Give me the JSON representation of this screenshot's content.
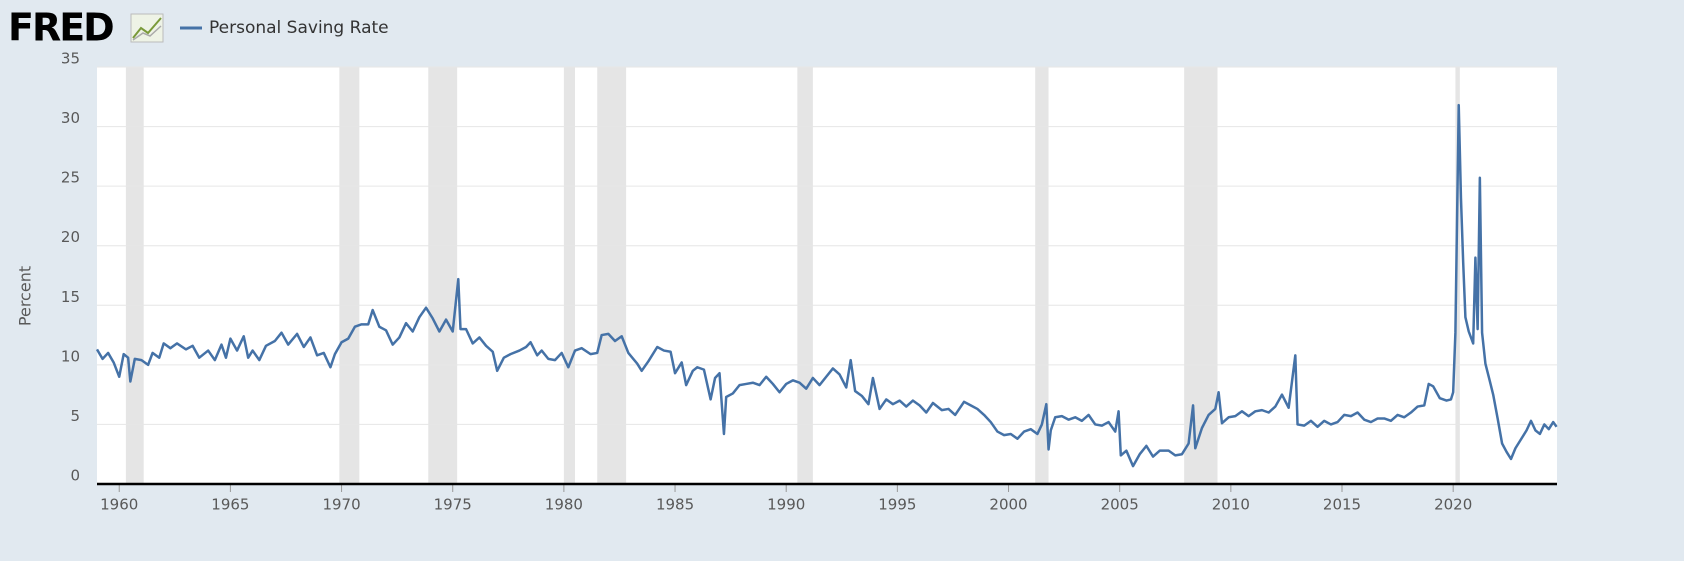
{
  "logo": "FRED",
  "chart_data": {
    "type": "line",
    "ylabel": "Percent",
    "x": [
      1959.0,
      1959.25,
      1959.5,
      1959.75,
      1960.0,
      1960.2,
      1960.4,
      1960.5,
      1960.7,
      1961.0,
      1961.3,
      1961.5,
      1961.8,
      1962.0,
      1962.3,
      1962.6,
      1963.0,
      1963.3,
      1963.6,
      1964.0,
      1964.3,
      1964.6,
      1964.8,
      1965.0,
      1965.3,
      1965.6,
      1965.8,
      1966.0,
      1966.3,
      1966.6,
      1967.0,
      1967.3,
      1967.6,
      1968.0,
      1968.3,
      1968.6,
      1968.9,
      1969.2,
      1969.5,
      1969.7,
      1970.0,
      1970.3,
      1970.6,
      1970.9,
      1971.2,
      1971.4,
      1971.7,
      1972.0,
      1972.3,
      1972.6,
      1972.9,
      1973.2,
      1973.5,
      1973.8,
      1974.1,
      1974.4,
      1974.7,
      1975.0,
      1975.25,
      1975.35,
      1975.6,
      1975.9,
      1976.2,
      1976.5,
      1976.8,
      1977.0,
      1977.3,
      1977.6,
      1978.0,
      1978.3,
      1978.5,
      1978.8,
      1979.0,
      1979.3,
      1979.6,
      1979.9,
      1980.2,
      1980.5,
      1980.8,
      1981.2,
      1981.5,
      1981.7,
      1982.0,
      1982.3,
      1982.6,
      1982.9,
      1983.3,
      1983.5,
      1983.8,
      1984.2,
      1984.5,
      1984.8,
      1985.0,
      1985.3,
      1985.5,
      1985.8,
      1986.0,
      1986.3,
      1986.6,
      1986.8,
      1987.0,
      1987.2,
      1987.3,
      1987.6,
      1987.9,
      1988.2,
      1988.5,
      1988.8,
      1989.1,
      1989.4,
      1989.7,
      1990.0,
      1990.3,
      1990.6,
      1990.9,
      1991.2,
      1991.5,
      1991.8,
      1992.1,
      1992.4,
      1992.7,
      1992.9,
      1993.1,
      1993.4,
      1993.7,
      1993.9,
      1994.2,
      1994.5,
      1994.8,
      1995.1,
      1995.4,
      1995.7,
      1996.0,
      1996.3,
      1996.6,
      1997.0,
      1997.3,
      1997.6,
      1998.0,
      1998.3,
      1998.6,
      1998.9,
      1999.2,
      1999.5,
      1999.8,
      2000.1,
      2000.4,
      2000.7,
      2001.0,
      2001.3,
      2001.5,
      2001.7,
      2001.8,
      2001.9,
      2002.1,
      2002.4,
      2002.7,
      2003.0,
      2003.3,
      2003.6,
      2003.9,
      2004.2,
      2004.5,
      2004.8,
      2004.95,
      2005.05,
      2005.3,
      2005.6,
      2005.9,
      2006.2,
      2006.5,
      2006.8,
      2007.2,
      2007.5,
      2007.8,
      2008.1,
      2008.3,
      2008.4,
      2008.7,
      2009.0,
      2009.3,
      2009.45,
      2009.6,
      2009.9,
      2010.2,
      2010.5,
      2010.8,
      2011.1,
      2011.4,
      2011.7,
      2012.0,
      2012.3,
      2012.6,
      2012.9,
      2013.0,
      2013.3,
      2013.6,
      2013.9,
      2014.2,
      2014.5,
      2014.8,
      2015.1,
      2015.4,
      2015.7,
      2016.0,
      2016.3,
      2016.6,
      2016.9,
      2017.2,
      2017.5,
      2017.8,
      2018.1,
      2018.4,
      2018.7,
      2018.9,
      2019.1,
      2019.4,
      2019.7,
      2019.9,
      2020.0,
      2020.1,
      2020.25,
      2020.35,
      2020.45,
      2020.55,
      2020.7,
      2020.9,
      2021.0,
      2021.1,
      2021.2,
      2021.3,
      2021.45,
      2021.6,
      2021.8,
      2022.0,
      2022.2,
      2022.4,
      2022.6,
      2022.8,
      2023.0,
      2023.3,
      2023.5,
      2023.7,
      2023.9,
      2024.1,
      2024.3,
      2024.5,
      2024.65
    ],
    "series": [
      {
        "name": "Personal Saving Rate",
        "color": "#4572a7",
        "values": [
          11.3,
          10.5,
          11.0,
          10.2,
          9.0,
          10.9,
          10.6,
          8.6,
          10.5,
          10.4,
          10.0,
          11.0,
          10.6,
          11.8,
          11.4,
          11.8,
          11.3,
          11.6,
          10.6,
          11.2,
          10.4,
          11.7,
          10.6,
          12.2,
          11.2,
          12.4,
          10.6,
          11.2,
          10.4,
          11.6,
          12.0,
          12.7,
          11.7,
          12.6,
          11.5,
          12.3,
          10.8,
          11.0,
          9.8,
          10.9,
          11.9,
          12.2,
          13.2,
          13.4,
          13.4,
          14.6,
          13.2,
          12.9,
          11.7,
          12.3,
          13.5,
          12.8,
          14.0,
          14.8,
          13.9,
          12.8,
          13.8,
          12.8,
          17.2,
          13.0,
          13.0,
          11.8,
          12.3,
          11.6,
          11.1,
          9.5,
          10.6,
          10.9,
          11.2,
          11.5,
          11.9,
          10.8,
          11.2,
          10.5,
          10.4,
          11.0,
          9.8,
          11.2,
          11.4,
          10.9,
          11.0,
          12.5,
          12.6,
          12.0,
          12.4,
          11.0,
          10.1,
          9.5,
          10.3,
          11.5,
          11.2,
          11.1,
          9.3,
          10.2,
          8.3,
          9.5,
          9.8,
          9.6,
          7.1,
          8.9,
          9.3,
          4.2,
          7.3,
          7.6,
          8.3,
          8.4,
          8.5,
          8.3,
          9.0,
          8.4,
          7.7,
          8.4,
          8.7,
          8.5,
          8.0,
          8.9,
          8.3,
          9.0,
          9.7,
          9.2,
          8.1,
          10.4,
          7.8,
          7.4,
          6.7,
          8.9,
          6.3,
          7.1,
          6.7,
          7.0,
          6.5,
          7.0,
          6.6,
          6.0,
          6.8,
          6.2,
          6.3,
          5.8,
          6.9,
          6.6,
          6.3,
          5.8,
          5.2,
          4.4,
          4.1,
          4.2,
          3.8,
          4.4,
          4.6,
          4.2,
          5.0,
          6.7,
          2.9,
          4.5,
          5.6,
          5.7,
          5.4,
          5.6,
          5.3,
          5.8,
          5.0,
          4.9,
          5.2,
          4.4,
          6.1,
          2.4,
          2.8,
          1.5,
          2.5,
          3.2,
          2.3,
          2.8,
          2.8,
          2.4,
          2.5,
          3.4,
          6.6,
          3.0,
          4.7,
          5.8,
          6.3,
          7.7,
          5.1,
          5.6,
          5.7,
          6.1,
          5.7,
          6.1,
          6.2,
          6.0,
          6.5,
          7.5,
          6.4,
          10.8,
          5.0,
          4.9,
          5.3,
          4.8,
          5.3,
          5.0,
          5.2,
          5.8,
          5.7,
          6.0,
          5.4,
          5.2,
          5.5,
          5.5,
          5.3,
          5.8,
          5.6,
          6.0,
          6.5,
          6.6,
          8.4,
          8.2,
          7.2,
          7.0,
          7.1,
          7.7,
          12.7,
          31.8,
          24.0,
          18.6,
          14.0,
          12.8,
          11.8,
          19.0,
          13.0,
          25.7,
          12.7,
          10.1,
          9.0,
          7.5,
          5.5,
          3.4,
          2.7,
          2.1,
          3.0,
          3.6,
          4.5,
          5.3,
          4.5,
          4.2,
          5.0,
          4.6,
          5.2,
          4.8
        ]
      }
    ],
    "recessions": [
      [
        1960.3,
        1961.1
      ],
      [
        1969.9,
        1970.8
      ],
      [
        1973.9,
        1975.2
      ],
      [
        1980.0,
        1980.5
      ],
      [
        1981.5,
        1982.8
      ],
      [
        1990.5,
        1991.2
      ],
      [
        2001.2,
        2001.8
      ],
      [
        2007.9,
        2009.4
      ],
      [
        2020.1,
        2020.3
      ]
    ],
    "recession_color": "#e5e5e5",
    "xlim": [
      1959.0,
      2024.67
    ],
    "ylim": [
      0,
      35
    ],
    "xticks": [
      1960,
      1965,
      1970,
      1975,
      1980,
      1985,
      1990,
      1995,
      2000,
      2005,
      2010,
      2015,
      2020
    ],
    "yticks": [
      0,
      5,
      10,
      15,
      20,
      25,
      30,
      35
    ],
    "grid": true
  }
}
